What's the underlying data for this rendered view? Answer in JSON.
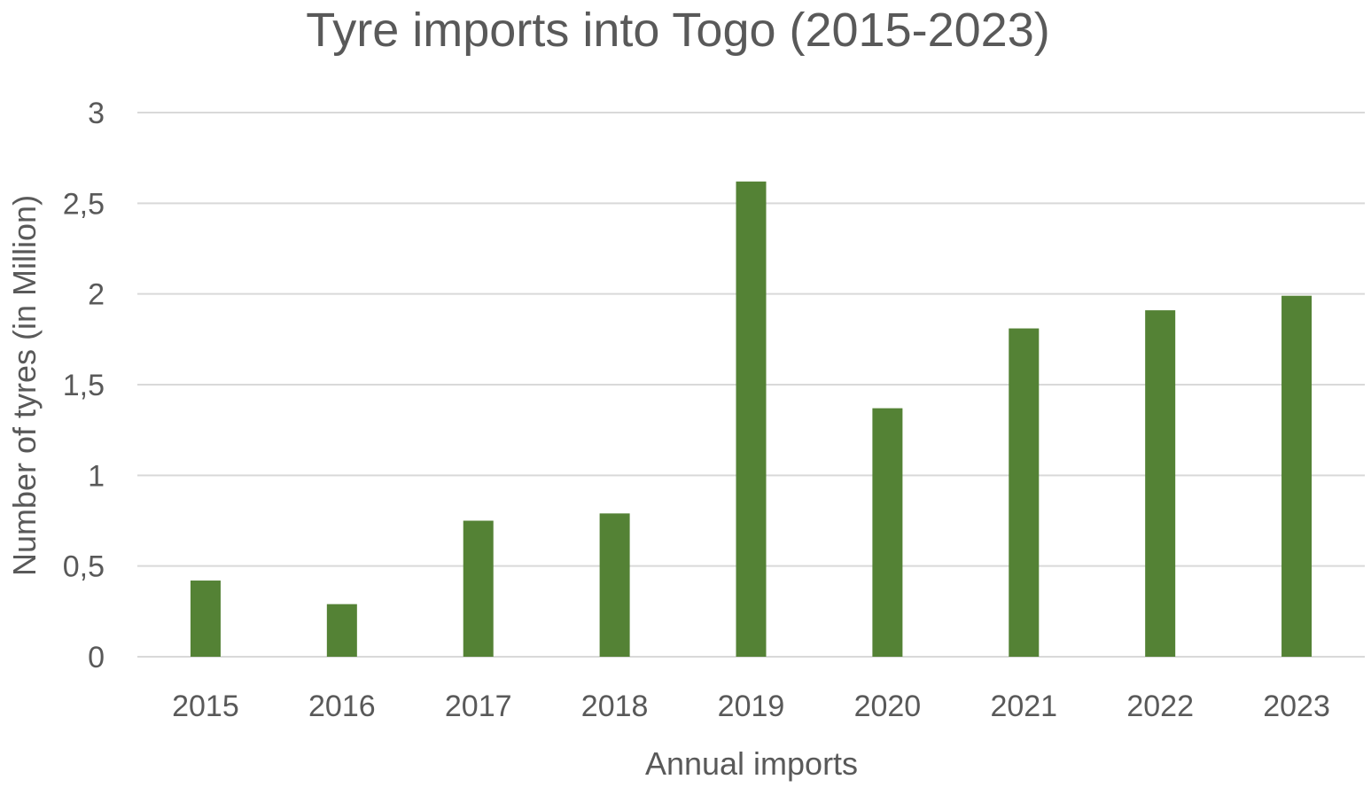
{
  "chart_data": {
    "type": "bar",
    "title": "Tyre imports into Togo (2015-2023)",
    "xlabel": "Annual imports",
    "ylabel": "Number of tyres (in Million)",
    "categories": [
      "2015",
      "2016",
      "2017",
      "2018",
      "2019",
      "2020",
      "2021",
      "2022",
      "2023"
    ],
    "series": [
      {
        "values": [
          0.42,
          0.29,
          0.75,
          0.79,
          2.62,
          1.37,
          1.81,
          1.91,
          1.99
        ]
      }
    ],
    "ylim": [
      0,
      3
    ],
    "yticks": [
      0,
      0.5,
      1,
      1.5,
      2,
      2.5,
      3
    ],
    "ytick_labels": [
      "0",
      "0,5",
      "1",
      "1,5",
      "2",
      "2,5",
      "3"
    ],
    "grid": true,
    "legend": "none",
    "bar_color": "#548235",
    "grid_color": "#d9d9d9",
    "text_color": "#595959"
  }
}
